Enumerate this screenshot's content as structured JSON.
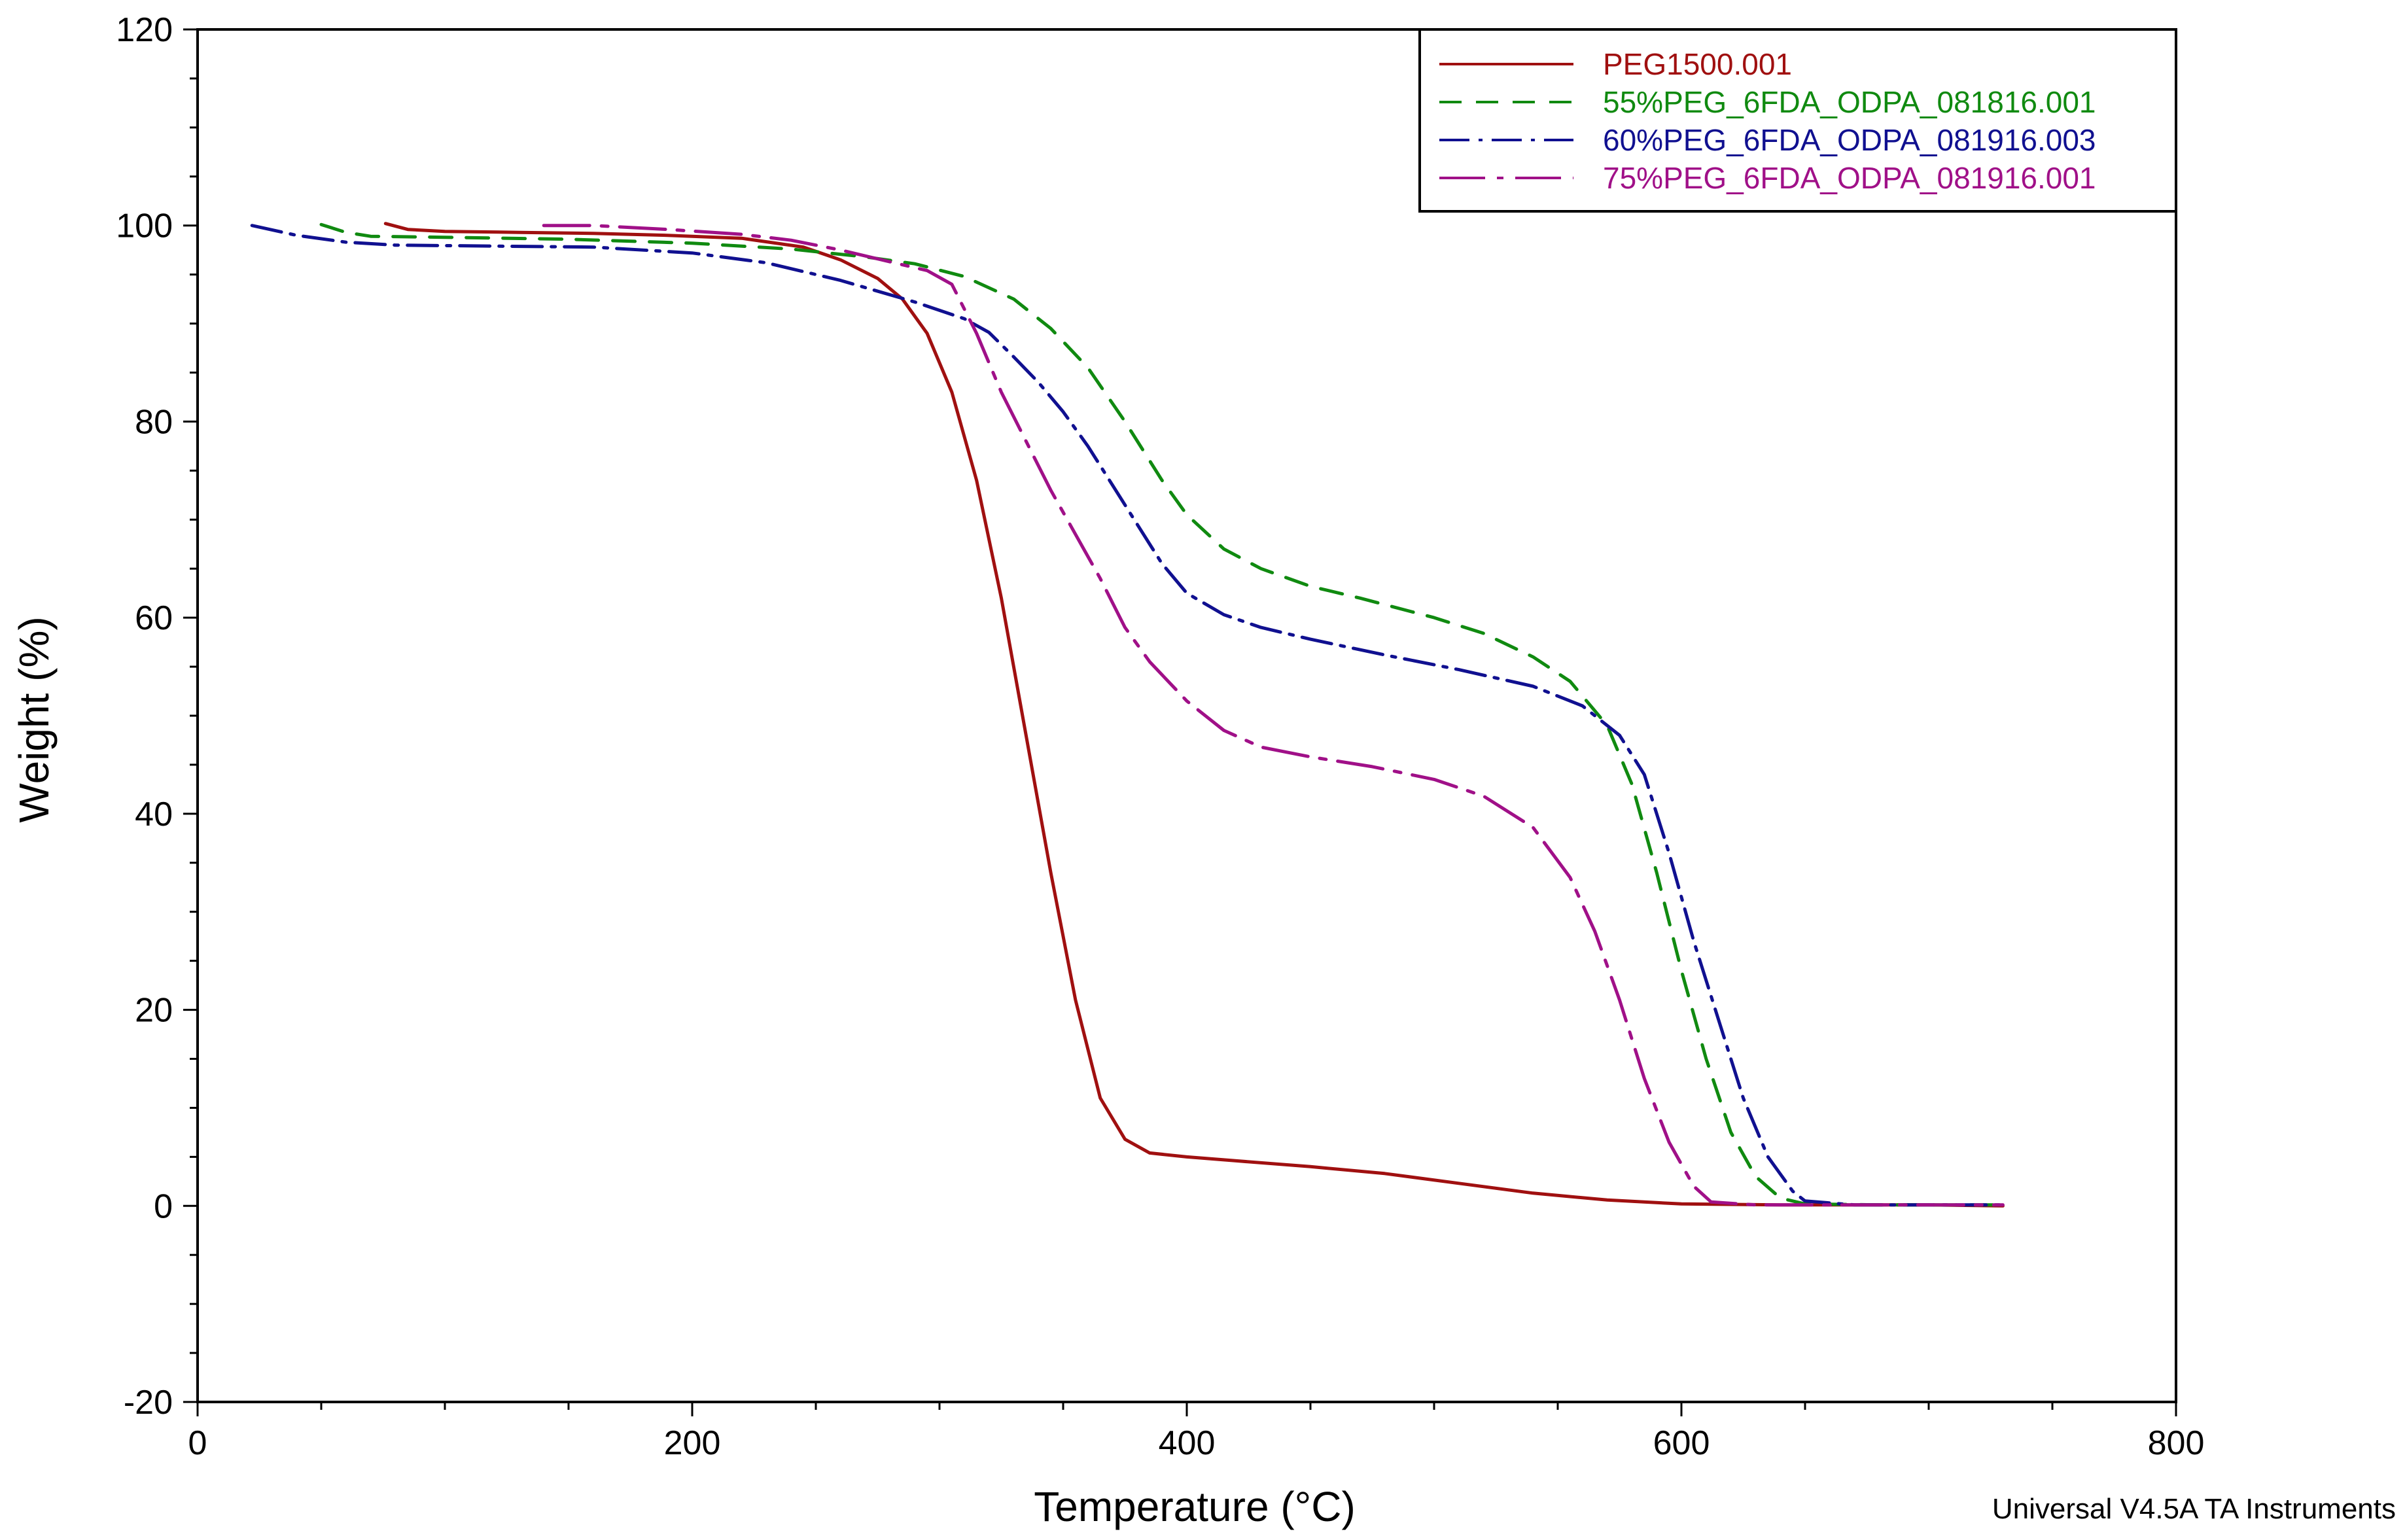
{
  "chart_data": {
    "type": "line",
    "title": "",
    "xlabel": "Temperature (°C)",
    "ylabel": "Weight (%)",
    "xlim": [
      0,
      800
    ],
    "ylim": [
      -20,
      120
    ],
    "xticks": [
      0,
      200,
      400,
      600,
      800
    ],
    "yticks": [
      -20,
      0,
      20,
      40,
      60,
      80,
      100,
      120
    ],
    "grid": false,
    "legend_position": "top-right",
    "series": [
      {
        "name": "PEG1500.001",
        "color": "#a01010",
        "dash": "solid",
        "points": [
          [
            76,
            100.2
          ],
          [
            85,
            99.6
          ],
          [
            100,
            99.4
          ],
          [
            130,
            99.3
          ],
          [
            160,
            99.2
          ],
          [
            190,
            99.0
          ],
          [
            220,
            98.7
          ],
          [
            245,
            97.8
          ],
          [
            260,
            96.5
          ],
          [
            275,
            94.6
          ],
          [
            285,
            92.5
          ],
          [
            295,
            89
          ],
          [
            305,
            83
          ],
          [
            315,
            74
          ],
          [
            325,
            62
          ],
          [
            335,
            48
          ],
          [
            345,
            34
          ],
          [
            355,
            21
          ],
          [
            365,
            11
          ],
          [
            375,
            6.8
          ],
          [
            385,
            5.4
          ],
          [
            400,
            5.0
          ],
          [
            420,
            4.6
          ],
          [
            450,
            4.0
          ],
          [
            480,
            3.3
          ],
          [
            510,
            2.3
          ],
          [
            540,
            1.3
          ],
          [
            570,
            0.6
          ],
          [
            600,
            0.2
          ],
          [
            640,
            0.1
          ],
          [
            700,
            0.1
          ],
          [
            730,
            0.0
          ]
        ]
      },
      {
        "name": "55%PEG_6FDA_ODPA_081816.001",
        "color": "#108a10",
        "dash": "long-dash",
        "points": [
          [
            50,
            100.1
          ],
          [
            60,
            99.3
          ],
          [
            70,
            98.9
          ],
          [
            100,
            98.8
          ],
          [
            150,
            98.6
          ],
          [
            200,
            98.2
          ],
          [
            240,
            97.6
          ],
          [
            270,
            96.8
          ],
          [
            290,
            96.1
          ],
          [
            310,
            94.8
          ],
          [
            330,
            92.5
          ],
          [
            345,
            89.5
          ],
          [
            360,
            85.5
          ],
          [
            375,
            80
          ],
          [
            390,
            74
          ],
          [
            400,
            70.5
          ],
          [
            415,
            67
          ],
          [
            430,
            65
          ],
          [
            450,
            63.2
          ],
          [
            470,
            62
          ],
          [
            500,
            60
          ],
          [
            520,
            58.4
          ],
          [
            540,
            56
          ],
          [
            555,
            53.5
          ],
          [
            570,
            49
          ],
          [
            580,
            43
          ],
          [
            590,
            34
          ],
          [
            600,
            24
          ],
          [
            610,
            15
          ],
          [
            620,
            7.5
          ],
          [
            630,
            3
          ],
          [
            640,
            0.8
          ],
          [
            650,
            0.2
          ],
          [
            680,
            0.1
          ],
          [
            730,
            0.1
          ]
        ]
      },
      {
        "name": "60%PEG_6FDA_ODPA_081916.003",
        "color": "#101090",
        "dash": "dash-dot",
        "points": [
          [
            22,
            100
          ],
          [
            40,
            99
          ],
          [
            60,
            98.3
          ],
          [
            80,
            98
          ],
          [
            120,
            97.9
          ],
          [
            160,
            97.8
          ],
          [
            200,
            97.2
          ],
          [
            230,
            96.2
          ],
          [
            260,
            94.4
          ],
          [
            290,
            92.2
          ],
          [
            310,
            90.5
          ],
          [
            320,
            89.1
          ],
          [
            330,
            86.6
          ],
          [
            340,
            84
          ],
          [
            350,
            81
          ],
          [
            360,
            77.5
          ],
          [
            370,
            73.5
          ],
          [
            380,
            69.5
          ],
          [
            390,
            65.5
          ],
          [
            400,
            62.5
          ],
          [
            415,
            60.3
          ],
          [
            430,
            59
          ],
          [
            450,
            57.8
          ],
          [
            480,
            56.2
          ],
          [
            510,
            54.7
          ],
          [
            540,
            53
          ],
          [
            560,
            51
          ],
          [
            575,
            48
          ],
          [
            585,
            44
          ],
          [
            595,
            36
          ],
          [
            605,
            27
          ],
          [
            615,
            19
          ],
          [
            625,
            11
          ],
          [
            635,
            5
          ],
          [
            645,
            1.5
          ],
          [
            650,
            0.5
          ],
          [
            670,
            0.1
          ],
          [
            730,
            0.1
          ]
        ]
      },
      {
        "name": "75%PEG_6FDA_ODPA_081916.001",
        "color": "#a01088",
        "dash": "long-dash-dot",
        "points": [
          [
            140,
            100
          ],
          [
            160,
            100
          ],
          [
            190,
            99.6
          ],
          [
            220,
            99.1
          ],
          [
            240,
            98.5
          ],
          [
            260,
            97.5
          ],
          [
            280,
            96.3
          ],
          [
            295,
            95.4
          ],
          [
            305,
            94
          ],
          [
            315,
            89
          ],
          [
            325,
            83
          ],
          [
            335,
            78
          ],
          [
            345,
            73
          ],
          [
            355,
            68.5
          ],
          [
            365,
            64
          ],
          [
            375,
            59
          ],
          [
            385,
            55.5
          ],
          [
            400,
            51.5
          ],
          [
            415,
            48.5
          ],
          [
            430,
            46.8
          ],
          [
            450,
            45.8
          ],
          [
            475,
            44.8
          ],
          [
            500,
            43.5
          ],
          [
            520,
            41.8
          ],
          [
            540,
            38.6
          ],
          [
            555,
            33.5
          ],
          [
            565,
            28
          ],
          [
            575,
            21
          ],
          [
            585,
            13
          ],
          [
            595,
            6.5
          ],
          [
            605,
            2
          ],
          [
            612,
            0.4
          ],
          [
            630,
            0.1
          ],
          [
            730,
            0.1
          ]
        ]
      }
    ]
  },
  "footer_text": "Universal V4.5A TA Instruments"
}
